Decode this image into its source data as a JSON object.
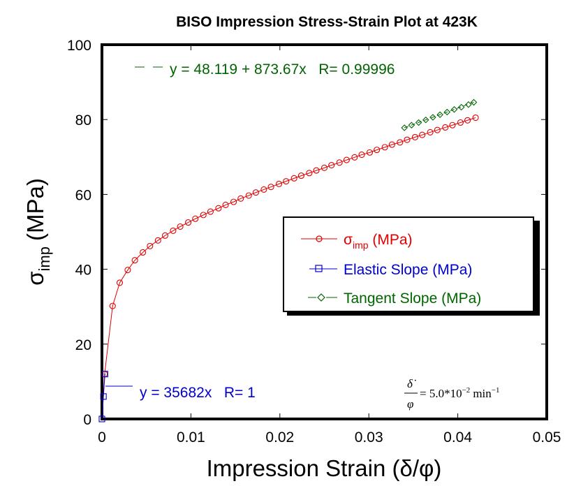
{
  "chart_data": {
    "type": "scatter",
    "title": "BISO Impression Stress-Strain Plot at 423K",
    "xlabel": "Impression Strain (δ/φ)",
    "ylabel": {
      "symbol": "σ",
      "subscript": "imp",
      "unit": "(MPa)"
    },
    "xlim": [
      0,
      0.05
    ],
    "ylim": [
      0,
      100
    ],
    "x_ticks": [
      "0",
      "0.01",
      "0.02",
      "0.03",
      "0.04",
      "0.05"
    ],
    "y_ticks": [
      "0",
      "20",
      "40",
      "60",
      "80",
      "100"
    ],
    "grid": false,
    "legend_position": "center-right",
    "colors": {
      "stress": "#e00000",
      "elastic": "#0000cc",
      "tangent": "#006400",
      "axis": "#000000"
    },
    "series": [
      {
        "name": "σimp (MPa)",
        "legend_symbol": "σ",
        "legend_sub": "imp",
        "legend_unit": " (MPa)",
        "marker": "circle",
        "line": "solid",
        "points": [
          [
            0.0003,
            12.0
          ],
          [
            0.0012,
            30.2
          ],
          [
            0.002,
            36.4
          ],
          [
            0.0029,
            39.8
          ],
          [
            0.0037,
            42.4
          ],
          [
            0.0046,
            44.5
          ],
          [
            0.0054,
            46.2
          ],
          [
            0.0063,
            47.7
          ],
          [
            0.0071,
            49.0
          ],
          [
            0.008,
            50.3
          ],
          [
            0.0088,
            51.4
          ],
          [
            0.0097,
            52.5
          ],
          [
            0.0105,
            53.5
          ],
          [
            0.0114,
            54.5
          ],
          [
            0.0122,
            55.4
          ],
          [
            0.0131,
            56.3
          ],
          [
            0.0139,
            57.2
          ],
          [
            0.0148,
            58.0
          ],
          [
            0.0156,
            58.9
          ],
          [
            0.0165,
            59.7
          ],
          [
            0.0173,
            60.5
          ],
          [
            0.0182,
            61.3
          ],
          [
            0.019,
            62.0
          ],
          [
            0.0199,
            62.8
          ],
          [
            0.0207,
            63.5
          ],
          [
            0.0216,
            64.3
          ],
          [
            0.0224,
            65.0
          ],
          [
            0.0233,
            65.7
          ],
          [
            0.0241,
            66.4
          ],
          [
            0.025,
            67.1
          ],
          [
            0.0258,
            67.8
          ],
          [
            0.0267,
            68.5
          ],
          [
            0.0275,
            69.2
          ],
          [
            0.0284,
            69.9
          ],
          [
            0.0292,
            70.6
          ],
          [
            0.0301,
            71.2
          ],
          [
            0.0309,
            71.9
          ],
          [
            0.0318,
            72.6
          ],
          [
            0.0326,
            73.3
          ],
          [
            0.0335,
            73.9
          ],
          [
            0.0343,
            74.6
          ],
          [
            0.0352,
            75.3
          ],
          [
            0.036,
            75.9
          ],
          [
            0.0369,
            76.6
          ],
          [
            0.0377,
            77.2
          ],
          [
            0.0386,
            77.9
          ],
          [
            0.0394,
            78.5
          ],
          [
            0.0403,
            79.2
          ],
          [
            0.0411,
            79.8
          ],
          [
            0.042,
            80.5
          ]
        ]
      },
      {
        "name": "Elastic Slope (MPa)",
        "marker": "square",
        "line": "solid",
        "points": [
          [
            0.0,
            0.0
          ],
          [
            0.00017,
            6.0
          ],
          [
            0.00034,
            12.0
          ]
        ],
        "fit": {
          "intercept": 0,
          "slope": 35682,
          "x_range": [
            0,
            0.00034
          ]
        }
      },
      {
        "name": "Tangent Slope (MPa)",
        "marker": "diamond",
        "line": "dashed",
        "points": [
          [
            0.034,
            77.8
          ],
          [
            0.0348,
            78.5
          ],
          [
            0.0356,
            79.2
          ],
          [
            0.0364,
            79.9
          ],
          [
            0.0372,
            80.6
          ],
          [
            0.038,
            81.3
          ],
          [
            0.0388,
            82.0
          ],
          [
            0.0396,
            82.7
          ],
          [
            0.0404,
            83.3
          ],
          [
            0.0412,
            84.0
          ],
          [
            0.0418,
            84.6
          ]
        ],
        "fit": {
          "intercept": 48.119,
          "slope": 873.67,
          "x_range": [
            0.034,
            0.0418
          ]
        }
      }
    ],
    "annotations": {
      "tangent_fit": "y = 48.119 + 873.67x   R= 0.99996",
      "elastic_fit": "y = 35682x   R= 1",
      "strain_rate": {
        "numerator": "δ̇",
        "denominator": "φ",
        "rhs": "= 5.0*10",
        "exponent": "−2",
        "unit": "min",
        "unit_exponent": "−1"
      }
    }
  }
}
